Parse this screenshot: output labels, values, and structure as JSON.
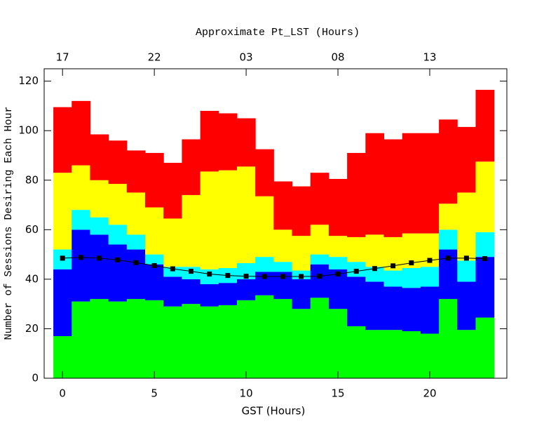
{
  "chart_data": {
    "type": "stacked-step",
    "xlabel": "GST (Hours)",
    "ylabel": "Number of Sessions Desiring Each Hour",
    "x2label": "Approximate Pt_LST (Hours)",
    "x": [
      0,
      1,
      2,
      3,
      4,
      5,
      6,
      7,
      8,
      9,
      10,
      11,
      12,
      13,
      14,
      15,
      16,
      17,
      18,
      19,
      20,
      21,
      22,
      23
    ],
    "series": [
      {
        "color": "#00ff00",
        "values": [
          17,
          31,
          32,
          31,
          32,
          31.5,
          29,
          30,
          29,
          29.5,
          31.5,
          33.5,
          32,
          28,
          32.5,
          28,
          21,
          19.5,
          19.5,
          19,
          18,
          32,
          19.5,
          24.5
        ]
      },
      {
        "color": "#0000ff",
        "values": [
          27,
          29,
          26,
          23,
          20,
          14.5,
          12,
          10,
          9,
          9,
          8.5,
          9.5,
          11,
          12,
          13.5,
          16,
          20,
          19.5,
          17.5,
          17.5,
          19,
          20,
          19.5,
          24.5
        ]
      },
      {
        "color": "#00ffff",
        "values": [
          8,
          8,
          7,
          8,
          6,
          4,
          4,
          5,
          6,
          6,
          6.5,
          6,
          4,
          3.5,
          4,
          5,
          6,
          6,
          6.5,
          8,
          8,
          8,
          8.5,
          10
        ]
      },
      {
        "color": "#ffff00",
        "values": [
          31,
          18,
          15,
          16.5,
          17,
          19,
          19.5,
          29,
          39.5,
          39.5,
          39,
          24.5,
          13,
          14,
          12,
          8.5,
          10,
          13,
          13.5,
          14,
          13.5,
          10.5,
          27.5,
          28.5
        ]
      },
      {
        "color": "#ff0000",
        "values": [
          26.5,
          26,
          18.5,
          17.5,
          17,
          22,
          22.5,
          22.5,
          24.5,
          23,
          19.5,
          19,
          19.5,
          20,
          21,
          23,
          34,
          41,
          39.5,
          40.5,
          40.5,
          34,
          26.5,
          29
        ]
      }
    ],
    "line": {
      "color": "#000000",
      "values": [
        48.5,
        48.8,
        48.5,
        47.8,
        46.7,
        45.5,
        44.2,
        43.2,
        42.1,
        41.5,
        41.2,
        41.1,
        41.1,
        41.1,
        41.2,
        42.1,
        43.2,
        44.3,
        45.4,
        46.6,
        47.6,
        48.5,
        48.5,
        48.3
      ]
    },
    "xlim": [
      -1,
      24.2
    ],
    "ylim": [
      0,
      125
    ],
    "xticks": [
      0,
      5,
      10,
      15,
      20
    ],
    "yticks": [
      0,
      20,
      40,
      60,
      80,
      100,
      120
    ],
    "x2ticks": [
      {
        "value": 0,
        "label": "17"
      },
      {
        "value": 5,
        "label": "22"
      },
      {
        "value": 10,
        "label": "03"
      },
      {
        "value": 15,
        "label": "08"
      },
      {
        "value": 20,
        "label": "13"
      }
    ]
  }
}
